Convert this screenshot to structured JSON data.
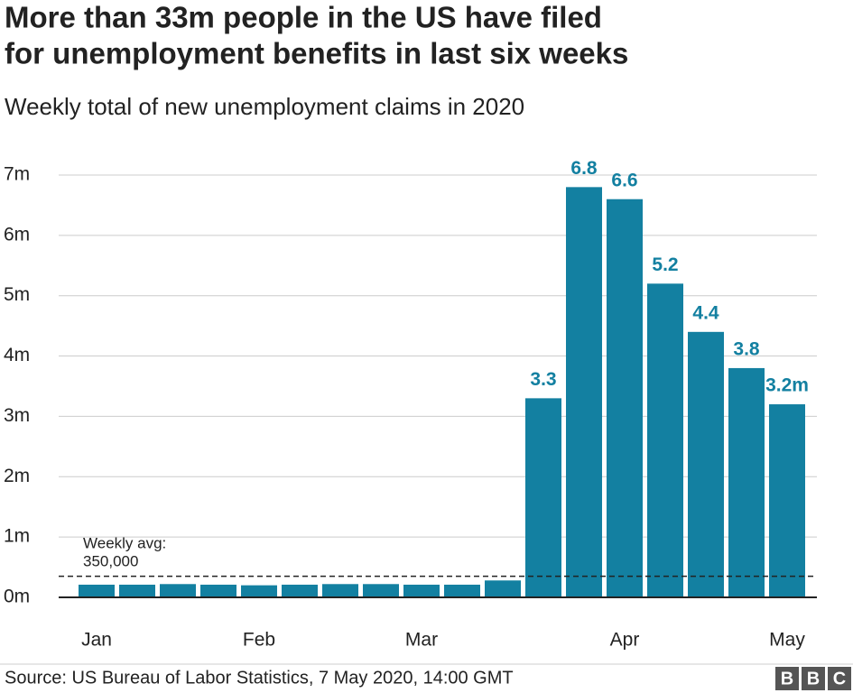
{
  "chart_data": {
    "type": "bar",
    "title": [
      "More than 33m people in the US have filed",
      "for unemployment benefits in last six weeks"
    ],
    "subtitle": "Weekly total of new unemployment claims in 2020",
    "categories": [
      "Jan",
      null,
      null,
      null,
      "Feb",
      null,
      null,
      null,
      "Mar",
      null,
      null,
      null,
      null,
      "Apr",
      null,
      null,
      null,
      "May"
    ],
    "values": [
      0.21,
      0.21,
      0.22,
      0.21,
      0.2,
      0.21,
      0.22,
      0.22,
      0.21,
      0.21,
      0.28,
      3.3,
      6.8,
      6.6,
      5.2,
      4.4,
      3.8,
      3.2
    ],
    "value_labels": [
      null,
      null,
      null,
      null,
      null,
      null,
      null,
      null,
      null,
      null,
      null,
      "3.3",
      "6.8",
      "6.6",
      "5.2",
      "4.4",
      "3.8",
      "3.2m"
    ],
    "color": "#1380A1",
    "ylim": [
      0,
      7.3
    ],
    "yticks": [
      {
        "value": 0,
        "label": "0m"
      },
      {
        "value": 1,
        "label": "1m"
      },
      {
        "value": 2,
        "label": "2m"
      },
      {
        "value": 3,
        "label": "3m"
      },
      {
        "value": 4,
        "label": "4m"
      },
      {
        "value": 5,
        "label": "5m"
      },
      {
        "value": 6,
        "label": "6m"
      },
      {
        "value": 7,
        "label": "7m"
      }
    ],
    "grid": true,
    "reference_line": {
      "value": 0.35,
      "label": [
        "Weekly avg:",
        "350,000"
      ]
    },
    "source": "Source: US Bureau of Labor Statistics, 7 May 2020, 14:00 GMT",
    "logo": [
      "B",
      "B",
      "C"
    ]
  }
}
